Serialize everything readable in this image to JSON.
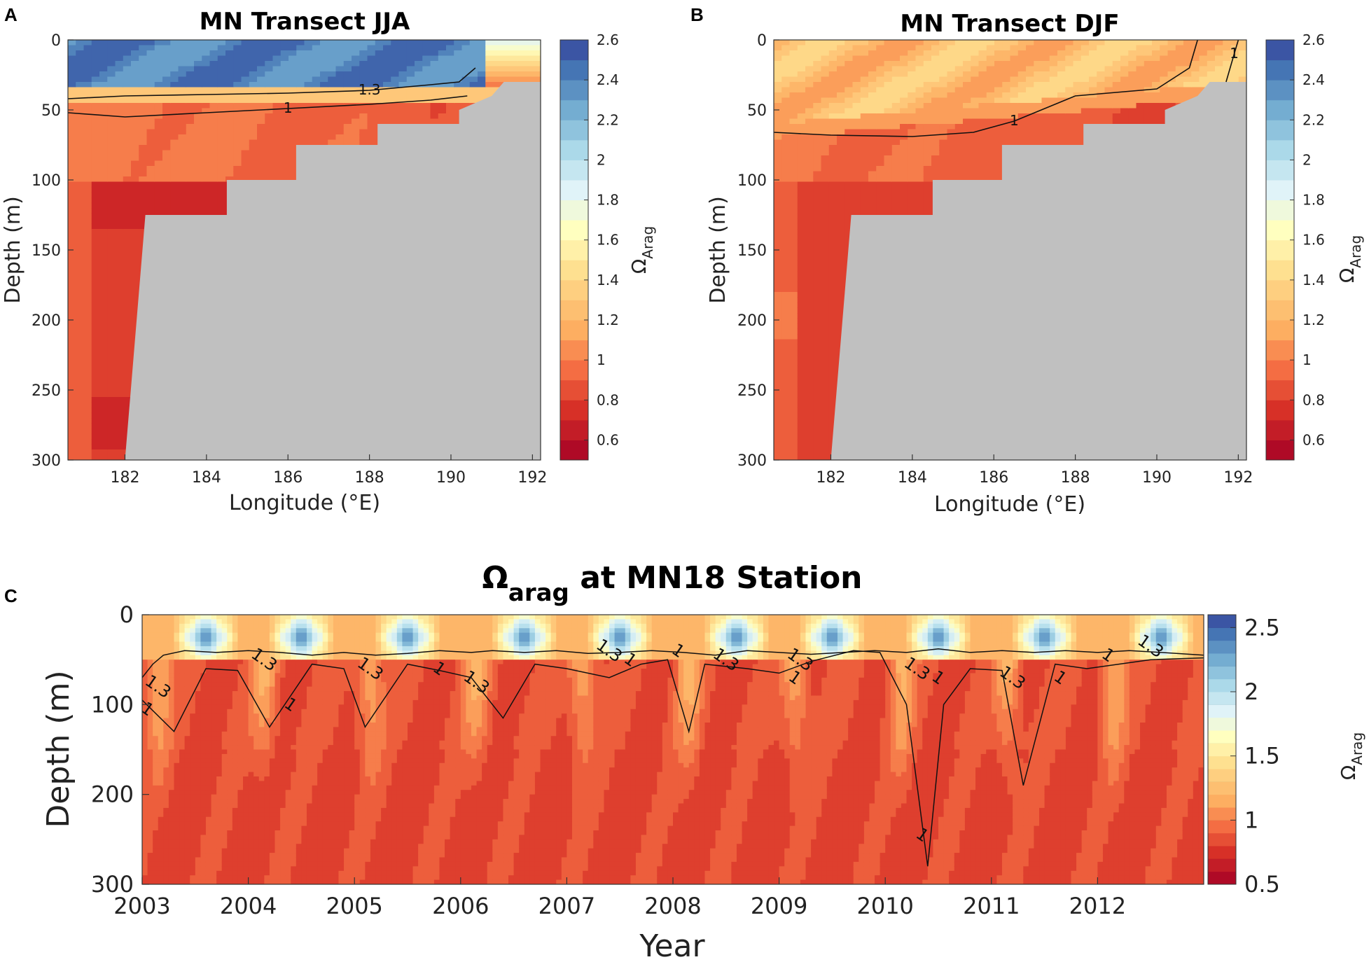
{
  "panel_labels": [
    "A",
    "B",
    "C"
  ],
  "chart_data": [
    {
      "panel": "A",
      "type": "heatmap",
      "title": "MN Transect JJA",
      "xlabel": "Longitude (°E)",
      "ylabel": "Depth (m)",
      "xlim": [
        180.6,
        192.2
      ],
      "ylim": [
        0,
        300
      ],
      "xticks": [
        182,
        184,
        186,
        188,
        190,
        192
      ],
      "yticks": [
        0,
        50,
        100,
        150,
        200,
        250,
        300
      ],
      "colorbar": {
        "label": "Ω",
        "sub": "Arag",
        "ticks": [
          0.6,
          0.8,
          1,
          1.2,
          1.4,
          1.6,
          1.8,
          2,
          2.2,
          2.4,
          2.6
        ],
        "range": [
          0.5,
          2.6
        ]
      },
      "surface_layer": {
        "depth_m": [
          0,
          35
        ],
        "omega": 2.4
      },
      "thermocline_omega": 1.3,
      "subsurface_omega": 0.95,
      "deep_omega": 0.78,
      "bathymetry": [
        [
          180.6,
          300
        ],
        [
          182.0,
          300
        ],
        [
          182.5,
          125
        ],
        [
          184.5,
          125
        ],
        [
          184.5,
          100
        ],
        [
          186.2,
          100
        ],
        [
          186.2,
          75
        ],
        [
          188.2,
          75
        ],
        [
          188.2,
          60
        ],
        [
          190.2,
          60
        ],
        [
          190.2,
          50
        ],
        [
          191.0,
          40
        ],
        [
          191.3,
          30
        ],
        [
          192.2,
          30
        ]
      ],
      "contours": [
        {
          "level": "1.3",
          "points": [
            [
              180.6,
              42
            ],
            [
              182,
              40
            ],
            [
              184,
              39
            ],
            [
              186,
              38
            ],
            [
              188,
              36
            ],
            [
              189.5,
              32
            ],
            [
              190.2,
              30
            ],
            [
              190.6,
              20
            ]
          ]
        },
        {
          "level": "1",
          "points": [
            [
              180.6,
              52
            ],
            [
              182,
              55
            ],
            [
              184,
              52
            ],
            [
              186,
              49
            ],
            [
              188,
              46
            ],
            [
              189.5,
              43
            ],
            [
              190.4,
              40
            ]
          ]
        }
      ]
    },
    {
      "panel": "B",
      "type": "heatmap",
      "title": "MN Transect DJF",
      "xlabel": "Longitude (°E)",
      "ylabel": "Depth (m)",
      "xlim": [
        180.6,
        192.2
      ],
      "ylim": [
        0,
        300
      ],
      "xticks": [
        182,
        184,
        186,
        188,
        190,
        192
      ],
      "yticks": [
        0,
        50,
        100,
        150,
        200,
        250,
        300
      ],
      "colorbar": {
        "label": "Ω",
        "sub": "Arag",
        "ticks": [
          0.6,
          0.8,
          1,
          1.2,
          1.4,
          1.6,
          1.8,
          2,
          2.2,
          2.4,
          2.6
        ],
        "range": [
          0.5,
          2.6
        ]
      },
      "surface_layer": {
        "depth_m": [
          0,
          60
        ],
        "omega": 1.25
      },
      "thermocline_omega": 1.05,
      "subsurface_omega": 0.92,
      "deep_omega": 0.8,
      "bathymetry": [
        [
          180.6,
          300
        ],
        [
          182.0,
          300
        ],
        [
          182.5,
          125
        ],
        [
          184.5,
          125
        ],
        [
          184.5,
          100
        ],
        [
          186.2,
          100
        ],
        [
          186.2,
          75
        ],
        [
          188.2,
          75
        ],
        [
          188.2,
          60
        ],
        [
          190.2,
          60
        ],
        [
          190.2,
          50
        ],
        [
          191.0,
          40
        ],
        [
          191.3,
          30
        ],
        [
          192.2,
          30
        ]
      ],
      "contours": [
        {
          "level": "1",
          "points": [
            [
              180.6,
              66
            ],
            [
              182,
              68
            ],
            [
              184,
              69
            ],
            [
              185.5,
              66
            ],
            [
              186.5,
              58
            ],
            [
              188,
              40
            ],
            [
              190,
              35
            ],
            [
              190.8,
              20
            ],
            [
              191.0,
              0
            ]
          ]
        },
        {
          "level": "1",
          "points": [
            [
              191.7,
              30
            ],
            [
              191.9,
              10
            ],
            [
              192.0,
              0
            ]
          ]
        }
      ]
    },
    {
      "panel": "C",
      "type": "heatmap",
      "title": "Ω",
      "title_sub": "arag",
      "title_rest": " at MN18 Station",
      "xlabel": "Year",
      "ylabel": "Depth (m)",
      "xlim": [
        2003,
        2013
      ],
      "ylim": [
        0,
        300
      ],
      "xticks": [
        2003,
        2004,
        2005,
        2006,
        2007,
        2008,
        2009,
        2010,
        2011,
        2012
      ],
      "yticks": [
        0,
        100,
        200,
        300
      ],
      "colorbar": {
        "label": "Ω",
        "sub": "Arag",
        "ticks": [
          0.5,
          1,
          1.5,
          2,
          2.5
        ],
        "range": [
          0.5,
          2.6
        ]
      },
      "summer_maxima_year": [
        2003.6,
        2004.5,
        2005.5,
        2006.6,
        2007.5,
        2008.6,
        2009.5,
        2010.5,
        2011.5,
        2012.6
      ],
      "surface_max_omega": 2.5,
      "deep_omega": 0.85,
      "contours": [
        {
          "level": "1.3",
          "points": [
            [
              2003.0,
              70
            ],
            [
              2003.1,
              55
            ],
            [
              2003.2,
              45
            ],
            [
              2003.4,
              40
            ],
            [
              2003.7,
              42
            ],
            [
              2004.0,
              40
            ],
            [
              2004.3,
              42
            ],
            [
              2004.6,
              45
            ],
            [
              2004.9,
              42
            ],
            [
              2005.2,
              45
            ],
            [
              2005.5,
              43
            ],
            [
              2005.8,
              40
            ],
            [
              2006.1,
              42
            ],
            [
              2006.3,
              40
            ],
            [
              2006.6,
              42
            ],
            [
              2006.9,
              40
            ],
            [
              2007.2,
              43
            ],
            [
              2007.5,
              42
            ],
            [
              2007.8,
              40
            ],
            [
              2008.1,
              42
            ],
            [
              2008.4,
              45
            ],
            [
              2008.7,
              40
            ],
            [
              2009.0,
              42
            ],
            [
              2009.3,
              44
            ],
            [
              2009.6,
              42
            ],
            [
              2009.9,
              40
            ],
            [
              2010.2,
              42
            ],
            [
              2010.5,
              38
            ],
            [
              2010.8,
              42
            ],
            [
              2011.1,
              40
            ],
            [
              2011.4,
              42
            ],
            [
              2011.7,
              40
            ],
            [
              2012.0,
              42
            ],
            [
              2012.3,
              40
            ],
            [
              2012.6,
              42
            ],
            [
              2013.0,
              45
            ]
          ]
        },
        {
          "level": "1",
          "points": [
            [
              2003.0,
              95
            ],
            [
              2003.3,
              130
            ],
            [
              2003.6,
              60
            ],
            [
              2003.9,
              62
            ],
            [
              2004.2,
              125
            ],
            [
              2004.6,
              55
            ],
            [
              2004.9,
              60
            ],
            [
              2005.1,
              125
            ],
            [
              2005.5,
              55
            ],
            [
              2005.8,
              62
            ],
            [
              2006.1,
              70
            ],
            [
              2006.4,
              115
            ],
            [
              2006.7,
              55
            ],
            [
              2007.0,
              60
            ],
            [
              2007.4,
              70
            ],
            [
              2007.7,
              55
            ],
            [
              2007.95,
              50
            ],
            [
              2008.15,
              130
            ],
            [
              2008.3,
              55
            ],
            [
              2008.7,
              60
            ],
            [
              2009.0,
              65
            ],
            [
              2009.3,
              52
            ],
            [
              2009.7,
              40
            ],
            [
              2009.95,
              42
            ],
            [
              2010.2,
              100
            ],
            [
              2010.4,
              280
            ],
            [
              2010.55,
              100
            ],
            [
              2010.8,
              60
            ],
            [
              2011.1,
              62
            ],
            [
              2011.3,
              190
            ],
            [
              2011.6,
              55
            ],
            [
              2011.9,
              60
            ],
            [
              2012.2,
              55
            ],
            [
              2012.5,
              50
            ],
            [
              2013.0,
              48
            ]
          ]
        }
      ],
      "contour_labels": [
        {
          "text": "1.3",
          "x": 2003.15,
          "y": 80
        },
        {
          "text": "1",
          "x": 2003.05,
          "y": 105
        },
        {
          "text": "1.3",
          "x": 2004.15,
          "y": 50
        },
        {
          "text": "1",
          "x": 2004.4,
          "y": 100
        },
        {
          "text": "1.3",
          "x": 2005.15,
          "y": 60
        },
        {
          "text": "1",
          "x": 2005.8,
          "y": 60
        },
        {
          "text": "1.3",
          "x": 2006.15,
          "y": 75
        },
        {
          "text": "1.3",
          "x": 2007.4,
          "y": 40
        },
        {
          "text": "1",
          "x": 2007.6,
          "y": 50
        },
        {
          "text": "1",
          "x": 2008.05,
          "y": 40
        },
        {
          "text": "1.3",
          "x": 2008.5,
          "y": 50
        },
        {
          "text": "1.3",
          "x": 2009.2,
          "y": 50
        },
        {
          "text": "1",
          "x": 2009.15,
          "y": 70
        },
        {
          "text": "1.3",
          "x": 2010.3,
          "y": 60
        },
        {
          "text": "1",
          "x": 2010.5,
          "y": 70
        },
        {
          "text": "1.3",
          "x": 2011.2,
          "y": 70
        },
        {
          "text": "1",
          "x": 2011.65,
          "y": 70
        },
        {
          "text": "1",
          "x": 2012.1,
          "y": 45
        },
        {
          "text": "1.3",
          "x": 2012.5,
          "y": 35
        },
        {
          "text": "1",
          "x": 2010.35,
          "y": 245
        }
      ]
    }
  ]
}
